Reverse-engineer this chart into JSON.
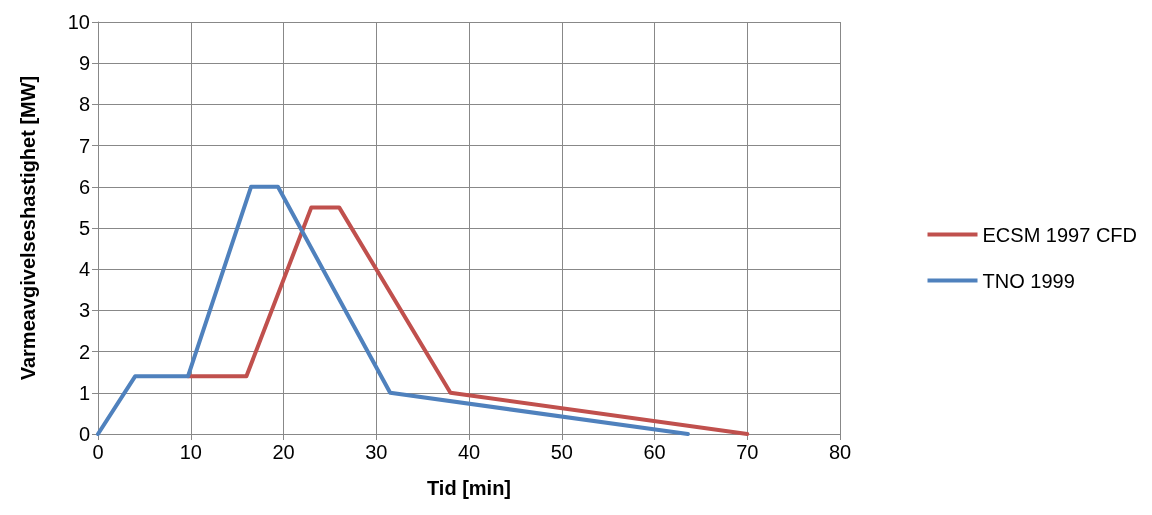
{
  "chart_data": {
    "type": "line",
    "xlabel": "Tid [min]",
    "ylabel": "Varmeavgivelseshastighet [MW]",
    "xlim": [
      0,
      80
    ],
    "xticks": [
      0,
      10,
      20,
      30,
      40,
      50,
      60,
      70,
      80
    ],
    "ylim": [
      0,
      10
    ],
    "yticks": [
      0,
      1,
      2,
      3,
      4,
      5,
      6,
      7,
      8,
      9,
      10
    ],
    "grid": true,
    "legend": "right",
    "marker": "none",
    "line_style": "solid",
    "series": [
      {
        "name": "ECSM 1997 CFD",
        "color": "#c0504d",
        "x": [
          9.7,
          16,
          23,
          26,
          38,
          70
        ],
        "values": [
          1.4,
          1.4,
          5.5,
          5.5,
          1,
          0
        ]
      },
      {
        "name": "TNO 1999",
        "color": "#4f81bd",
        "x": [
          0,
          4,
          9.7,
          16.5,
          19.4,
          31.5,
          63.6
        ],
        "values": [
          0,
          1.4,
          1.4,
          6,
          6,
          1,
          0
        ]
      }
    ]
  }
}
